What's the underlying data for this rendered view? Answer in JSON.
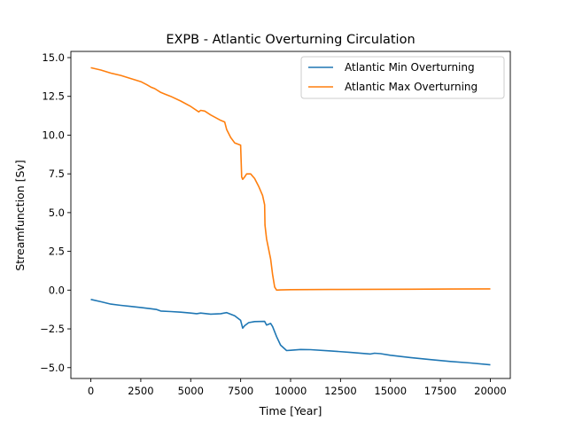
{
  "chart_data": {
    "type": "line",
    "title": "EXPB - Atlantic Overturning Circulation",
    "xlabel": "Time [Year]",
    "ylabel": "Streamfunction [Sv]",
    "xlim": [
      -1000,
      21000
    ],
    "ylim": [
      -5.7,
      15.4
    ],
    "xticks": [
      0,
      2500,
      5000,
      7500,
      10000,
      12500,
      15000,
      17500,
      20000
    ],
    "yticks": [
      -5.0,
      -2.5,
      0.0,
      2.5,
      5.0,
      7.5,
      10.0,
      12.5,
      15.0
    ],
    "xtick_labels": [
      "0",
      "2500",
      "5000",
      "7500",
      "10000",
      "12500",
      "15000",
      "17500",
      "20000"
    ],
    "ytick_labels": [
      "−5.0",
      "−2.5",
      "0.0",
      "2.5",
      "5.0",
      "7.5",
      "10.0",
      "12.5",
      "15.0"
    ],
    "grid": false,
    "legend_position": "upper-right",
    "series": [
      {
        "name": "Atlantic Min Overturning",
        "color": "#1f77b4",
        "x": [
          0,
          500,
          1000,
          1500,
          2000,
          2500,
          3000,
          3300,
          3500,
          4000,
          4500,
          5000,
          5300,
          5500,
          6000,
          6500,
          6800,
          7200,
          7500,
          7600,
          7700,
          7900,
          8200,
          8700,
          8800,
          9000,
          9100,
          9300,
          9500,
          9800,
          10000,
          10500,
          11000,
          12000,
          13000,
          14000,
          14200,
          14500,
          15000,
          16000,
          17000,
          18000,
          19000,
          20000
        ],
        "y": [
          -0.6,
          -0.75,
          -0.9,
          -0.98,
          -1.05,
          -1.12,
          -1.2,
          -1.25,
          -1.35,
          -1.38,
          -1.42,
          -1.48,
          -1.52,
          -1.48,
          -1.55,
          -1.52,
          -1.45,
          -1.65,
          -1.95,
          -2.45,
          -2.3,
          -2.1,
          -2.03,
          -2.02,
          -2.25,
          -2.15,
          -2.35,
          -3.0,
          -3.55,
          -3.9,
          -3.88,
          -3.83,
          -3.84,
          -3.92,
          -4.02,
          -4.12,
          -4.07,
          -4.1,
          -4.2,
          -4.35,
          -4.48,
          -4.6,
          -4.7,
          -4.82
        ]
      },
      {
        "name": "Atlantic Max Overturning",
        "color": "#ff7f0e",
        "x": [
          0,
          500,
          1000,
          1500,
          2000,
          2500,
          2800,
          3000,
          3200,
          3500,
          3700,
          4000,
          4500,
          5000,
          5400,
          5500,
          5700,
          6000,
          6500,
          6700,
          6800,
          7000,
          7200,
          7500,
          7550,
          7600,
          7700,
          7800,
          8000,
          8200,
          8400,
          8600,
          8700,
          8720,
          8800,
          9000,
          9100,
          9200,
          9300,
          9500,
          10000,
          12000,
          14000,
          16000,
          18000,
          20000
        ],
        "y": [
          14.35,
          14.2,
          14.0,
          13.85,
          13.65,
          13.45,
          13.25,
          13.1,
          13.0,
          12.75,
          12.65,
          12.5,
          12.2,
          11.85,
          11.5,
          11.6,
          11.55,
          11.3,
          10.95,
          10.85,
          10.35,
          9.85,
          9.5,
          9.35,
          7.3,
          7.15,
          7.3,
          7.5,
          7.5,
          7.2,
          6.7,
          6.1,
          5.5,
          4.2,
          3.3,
          2.0,
          1.0,
          0.2,
          0.0,
          0.01,
          0.03,
          0.04,
          0.05,
          0.06,
          0.07,
          0.08
        ]
      }
    ]
  }
}
